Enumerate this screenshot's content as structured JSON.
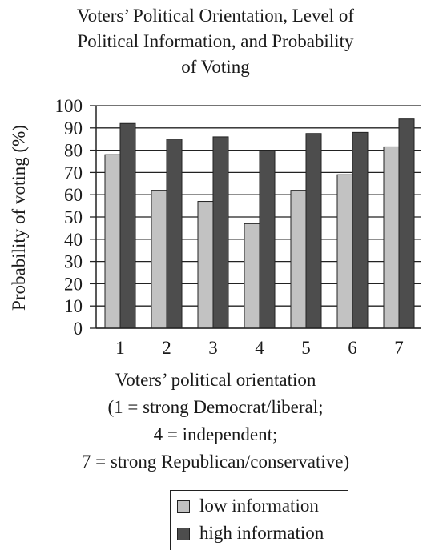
{
  "title_lines": [
    "Voters’ Political Orientation, Level of",
    "Political Information, and Probability",
    "of Voting"
  ],
  "ylabel": "Probability of voting (%)",
  "xlabel_lines": [
    "Voters’ political orientation",
    "(1 = strong Democrat/liberal;",
    "4 = independent;",
    "7 = strong Republican/conservative)"
  ],
  "legend": {
    "low": "low information",
    "high": "high information"
  },
  "colors": {
    "low": "#c2c2c2",
    "high": "#4d4d4d",
    "axis": "#222222"
  },
  "chart_data": {
    "type": "bar",
    "title": "Voters’ Political Orientation, Level of Political Information, and Probability of Voting",
    "xlabel": "Voters’ political orientation (1 = strong Democrat/liberal; 4 = independent; 7 = strong Republican/conservative)",
    "ylabel": "Probability of voting (%)",
    "categories": [
      "1",
      "2",
      "3",
      "4",
      "5",
      "6",
      "7"
    ],
    "series": [
      {
        "name": "low information",
        "values": [
          78,
          62,
          57,
          47,
          62,
          69,
          81.5
        ]
      },
      {
        "name": "high information",
        "values": [
          92,
          85,
          86,
          80,
          87.5,
          88,
          94
        ]
      }
    ],
    "ylim": [
      0,
      100
    ],
    "yticks": [
      0,
      10,
      20,
      30,
      40,
      50,
      60,
      70,
      80,
      90,
      100
    ],
    "grid": true,
    "legend_position": "bottom"
  }
}
